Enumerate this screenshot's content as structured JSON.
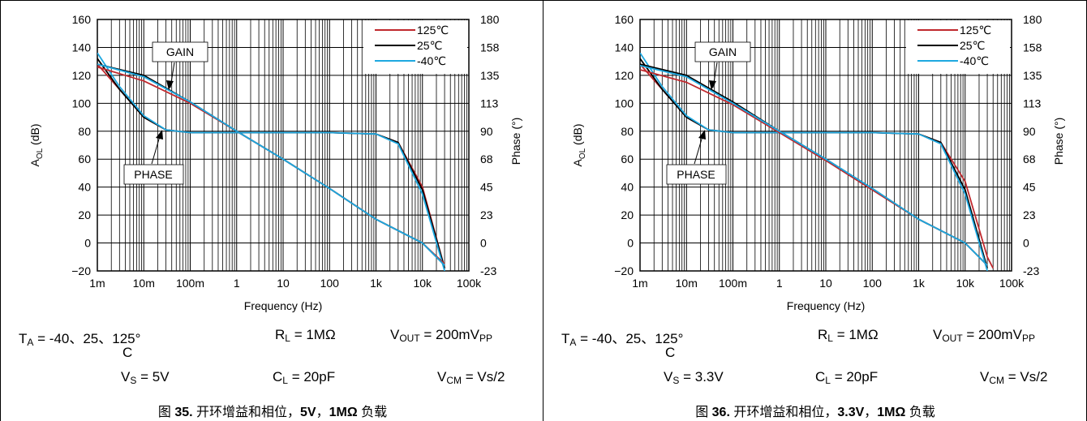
{
  "figures": [
    {
      "conditions": {
        "ta_label": "T",
        "ta_sub": "A",
        "ta_value": " = -40、25、125°",
        "ta_wrap": "C",
        "rl_label": "R",
        "rl_sub": "L",
        "rl_value": " = 1MΩ",
        "vout_label": "V",
        "vout_sub": "OUT",
        "vout_value": " = 200mV",
        "vout_sub2": "PP",
        "vs_label": "V",
        "vs_sub": "S",
        "vs_value": " = 5V",
        "cl_label": "C",
        "cl_sub": "L",
        "cl_value": " = 20pF",
        "vcm_label": "V",
        "vcm_sub": "CM",
        "vcm_value": " = Vs/2"
      },
      "caption": {
        "prefix": "图 ",
        "number": "35.",
        "text": " 开环增益和相位，",
        "bold1": "5V",
        "sep": "，",
        "bold2": "1MΩ",
        "suffix": " 负载"
      }
    },
    {
      "conditions": {
        "ta_label": "T",
        "ta_sub": "A",
        "ta_value": " = -40、25、125°",
        "ta_wrap": "C",
        "rl_label": "R",
        "rl_sub": "L",
        "rl_value": " = 1MΩ",
        "vout_label": "V",
        "vout_sub": "OUT",
        "vout_value": " = 200mV",
        "vout_sub2": "PP",
        "vs_label": "V",
        "vs_sub": "S",
        "vs_value": " = 3.3V",
        "cl_label": "C",
        "cl_sub": "L",
        "cl_value": " = 20pF",
        "vcm_label": "V",
        "vcm_sub": "CM",
        "vcm_value": " = Vs/2"
      },
      "caption": {
        "prefix": "图 ",
        "number": "36.",
        "text": " 开环增益和相位，",
        "bold1": "3.3V",
        "sep": "，",
        "bold2": "1MΩ",
        "suffix": " 负载"
      }
    }
  ],
  "chart_data": [
    {
      "type": "line",
      "xscale": "log",
      "xlabel": "Frequency (Hz)",
      "ylabel_left": "A",
      "ylabel_left_sub": "OL",
      "ylabel_left_unit": " (dB)",
      "ylabel_right": "Phase (°)",
      "xlim": [
        0.001,
        100000
      ],
      "ylim_left": [
        -20,
        160
      ],
      "ylim_right": [
        -23,
        180
      ],
      "xticks": [
        {
          "value": 0.001,
          "label": "1m"
        },
        {
          "value": 0.01,
          "label": "10m"
        },
        {
          "value": 0.1,
          "label": "100m"
        },
        {
          "value": 1,
          "label": "1"
        },
        {
          "value": 10,
          "label": "10"
        },
        {
          "value": 100,
          "label": "100"
        },
        {
          "value": 1000,
          "label": "1k"
        },
        {
          "value": 10000,
          "label": "10k"
        },
        {
          "value": 100000,
          "label": "100k"
        }
      ],
      "yticks_left": [
        "160",
        "140",
        "120",
        "100",
        "80",
        "60",
        "40",
        "20",
        "0",
        "−20"
      ],
      "yticks_right": [
        "180",
        "158",
        "135",
        "113",
        "90",
        "68",
        "45",
        "23",
        "0",
        "-23"
      ],
      "grid": true,
      "legend_position": "top-right",
      "annotations": [
        {
          "text": "GAIN",
          "points_to": "gain"
        },
        {
          "text": "PHASE",
          "points_to": "phase"
        }
      ],
      "series": [
        {
          "name": "125℃",
          "color": "#c0282d",
          "role": "gain",
          "x": [
            0.001,
            0.01,
            0.1,
            1,
            10,
            100,
            1000,
            10000,
            30000
          ],
          "y": [
            126,
            116,
            100,
            80,
            60,
            39,
            17,
            0,
            -15
          ]
        },
        {
          "name": "25℃",
          "color": "#000000",
          "role": "gain",
          "x": [
            0.001,
            0.01,
            0.1,
            1,
            10,
            100,
            1000,
            10000,
            30000
          ],
          "y": [
            128,
            120,
            101,
            80,
            60,
            39,
            17,
            0,
            -16
          ]
        },
        {
          "name": "-40℃",
          "color": "#1ea8e0",
          "role": "gain",
          "x": [
            0.001,
            0.01,
            0.1,
            1,
            10,
            100,
            1000,
            10000,
            30000
          ],
          "y": [
            128,
            119,
            101,
            80,
            60,
            39,
            17,
            0,
            -16
          ]
        },
        {
          "name": "125℃",
          "color": "#c0282d",
          "role": "phase",
          "x": [
            0.001,
            0.003,
            0.01,
            0.03,
            0.1,
            1,
            100,
            1000,
            3000,
            10000,
            30000
          ],
          "y": [
            128,
            110,
            90,
            81,
            79,
            79,
            79,
            78,
            72,
            40,
            -18
          ]
        },
        {
          "name": "25℃",
          "color": "#000000",
          "role": "phase",
          "x": [
            0.001,
            0.003,
            0.01,
            0.03,
            0.1,
            1,
            100,
            1000,
            3000,
            10000,
            30000
          ],
          "y": [
            132,
            110,
            90,
            81,
            79,
            79,
            79,
            78,
            72,
            38,
            -18
          ]
        },
        {
          "name": "-40℃",
          "color": "#1ea8e0",
          "role": "phase",
          "x": [
            0.001,
            0.003,
            0.01,
            0.03,
            0.1,
            1,
            100,
            1000,
            3000,
            10000,
            30000
          ],
          "y": [
            136,
            112,
            91,
            81,
            79,
            79,
            79,
            78,
            71,
            35,
            -20
          ]
        }
      ]
    },
    {
      "type": "line",
      "xscale": "log",
      "xlabel": "Frequency (Hz)",
      "ylabel_left": "A",
      "ylabel_left_sub": "OL",
      "ylabel_left_unit": " (dB)",
      "ylabel_right": "Phase (°)",
      "xlim": [
        0.001,
        100000
      ],
      "ylim_left": [
        -20,
        160
      ],
      "ylim_right": [
        -23,
        180
      ],
      "xticks": [
        {
          "value": 0.001,
          "label": "1m"
        },
        {
          "value": 0.01,
          "label": "10m"
        },
        {
          "value": 0.1,
          "label": "100m"
        },
        {
          "value": 1,
          "label": "1"
        },
        {
          "value": 10,
          "label": "10"
        },
        {
          "value": 100,
          "label": "100"
        },
        {
          "value": 1000,
          "label": "1k"
        },
        {
          "value": 10000,
          "label": "10k"
        },
        {
          "value": 100000,
          "label": "100k"
        }
      ],
      "yticks_left": [
        "160",
        "140",
        "120",
        "100",
        "80",
        "60",
        "40",
        "20",
        "0",
        "−20"
      ],
      "yticks_right": [
        "180",
        "158",
        "135",
        "113",
        "90",
        "68",
        "45",
        "23",
        "0",
        "-23"
      ],
      "grid": true,
      "legend_position": "top-right",
      "annotations": [
        {
          "text": "GAIN",
          "points_to": "gain"
        },
        {
          "text": "PHASE",
          "points_to": "phase"
        }
      ],
      "series": [
        {
          "name": "125℃",
          "color": "#c0282d",
          "role": "gain",
          "x": [
            0.001,
            0.01,
            0.1,
            1,
            10,
            100,
            1000,
            10000,
            30000
          ],
          "y": [
            124,
            115,
            99,
            79,
            59,
            38,
            17,
            0,
            -16
          ]
        },
        {
          "name": "25℃",
          "color": "#000000",
          "role": "gain",
          "x": [
            0.001,
            0.01,
            0.1,
            1,
            10,
            100,
            1000,
            10000,
            30000
          ],
          "y": [
            128,
            120,
            101,
            80,
            60,
            39,
            17,
            0,
            -16
          ]
        },
        {
          "name": "-40℃",
          "color": "#1ea8e0",
          "role": "gain",
          "x": [
            0.001,
            0.01,
            0.1,
            1,
            10,
            100,
            1000,
            10000,
            30000
          ],
          "y": [
            127,
            119,
            100,
            80,
            60,
            39,
            17,
            0,
            -16
          ]
        },
        {
          "name": "125℃",
          "color": "#c0282d",
          "role": "phase",
          "x": [
            0.001,
            0.003,
            0.01,
            0.03,
            0.1,
            1,
            100,
            1000,
            3000,
            10000,
            30000,
            40000
          ],
          "y": [
            128,
            110,
            90,
            81,
            79,
            79,
            79,
            78,
            72,
            44,
            -10,
            -18
          ]
        },
        {
          "name": "25℃",
          "color": "#000000",
          "role": "phase",
          "x": [
            0.001,
            0.003,
            0.01,
            0.03,
            0.1,
            1,
            100,
            1000,
            3000,
            10000,
            30000
          ],
          "y": [
            132,
            110,
            90,
            81,
            79,
            79,
            79,
            78,
            72,
            38,
            -18
          ]
        },
        {
          "name": "-40℃",
          "color": "#1ea8e0",
          "role": "phase",
          "x": [
            0.001,
            0.003,
            0.01,
            0.03,
            0.1,
            1,
            100,
            1000,
            3000,
            10000,
            30000
          ],
          "y": [
            136,
            112,
            91,
            81,
            79,
            79,
            79,
            78,
            71,
            35,
            -20
          ]
        }
      ]
    }
  ]
}
